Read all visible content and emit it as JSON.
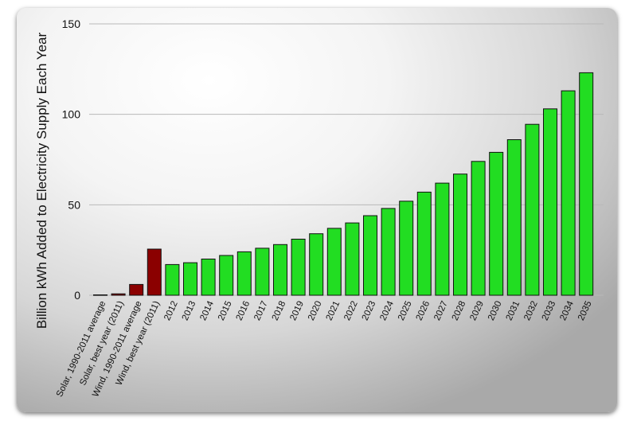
{
  "chart_data": {
    "type": "bar",
    "title": "",
    "xlabel": "",
    "ylabel": "Billion kWh Added to Electricity Supply Each Year",
    "ylim": [
      0,
      150
    ],
    "yticks": [
      0,
      50,
      100,
      150
    ],
    "grid": true,
    "categories": [
      "Solar, 1990-2011 average",
      "Solar, best year (2011)",
      "Wind, 1990-2011 average",
      "Wind, best year (2011)",
      "2012",
      "2013",
      "2014",
      "2015",
      "2016",
      "2017",
      "2018",
      "2019",
      "2020",
      "2021",
      "2022",
      "2023",
      "2024",
      "2025",
      "2026",
      "2027",
      "2028",
      "2029",
      "2030",
      "2031",
      "2032",
      "2033",
      "2034",
      "2035"
    ],
    "values": [
      0.2,
      0.8,
      6,
      25.5,
      17,
      18,
      20,
      22,
      24,
      26,
      28,
      31,
      34,
      37,
      40,
      44,
      48,
      52,
      57,
      62,
      67,
      74,
      79,
      86,
      94.5,
      103,
      113,
      123
    ],
    "colors": [
      "#8b0000",
      "#8b0000",
      "#8b0000",
      "#8b0000",
      "#22dd22",
      "#22dd22",
      "#22dd22",
      "#22dd22",
      "#22dd22",
      "#22dd22",
      "#22dd22",
      "#22dd22",
      "#22dd22",
      "#22dd22",
      "#22dd22",
      "#22dd22",
      "#22dd22",
      "#22dd22",
      "#22dd22",
      "#22dd22",
      "#22dd22",
      "#22dd22",
      "#22dd22",
      "#22dd22",
      "#22dd22",
      "#22dd22",
      "#22dd22",
      "#22dd22"
    ]
  }
}
